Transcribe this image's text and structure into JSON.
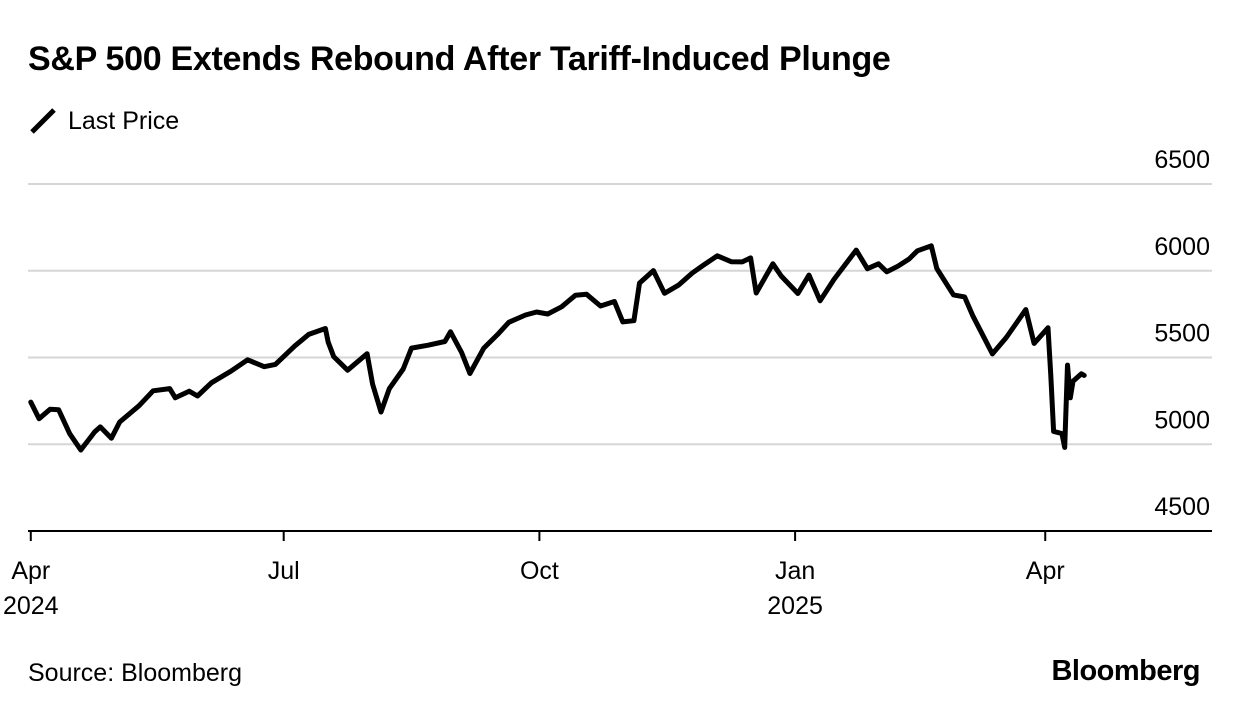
{
  "header": {
    "title": "S&P 500 Extends Rebound After Tariff-Induced Plunge",
    "legend_label": "Last Price"
  },
  "footer": {
    "source": "Source: Bloomberg",
    "brand": "Bloomberg"
  },
  "colors": {
    "line": "#000000",
    "grid": "#d6d6d6",
    "axis": "#000000",
    "background": "#ffffff"
  },
  "chart_data": {
    "type": "line",
    "title": "S&P 500 Extends Rebound After Tariff-Induced Plunge",
    "xlabel": "",
    "ylabel": "",
    "ylim": [
      4500,
      6500
    ],
    "y_ticks": [
      4500,
      5000,
      5500,
      6000,
      6500
    ],
    "x_range": [
      "2024-03-31",
      "2025-05-31"
    ],
    "x_ticks": [
      {
        "date": "2024-04-01",
        "label": "Apr",
        "year": "2024"
      },
      {
        "date": "2024-07-01",
        "label": "Jul",
        "year": ""
      },
      {
        "date": "2024-10-01",
        "label": "Oct",
        "year": ""
      },
      {
        "date": "2025-01-01",
        "label": "Jan",
        "year": "2025"
      },
      {
        "date": "2025-04-01",
        "label": "Apr",
        "year": ""
      }
    ],
    "grid": true,
    "legend_position": "top-left",
    "series": [
      {
        "name": "Last Price",
        "points": [
          [
            "2024-04-01",
            5243
          ],
          [
            "2024-04-04",
            5147
          ],
          [
            "2024-04-08",
            5202
          ],
          [
            "2024-04-11",
            5199
          ],
          [
            "2024-04-15",
            5061
          ],
          [
            "2024-04-19",
            4967
          ],
          [
            "2024-04-24",
            5071
          ],
          [
            "2024-04-26",
            5100
          ],
          [
            "2024-04-30",
            5035
          ],
          [
            "2024-05-03",
            5128
          ],
          [
            "2024-05-10",
            5223
          ],
          [
            "2024-05-15",
            5308
          ],
          [
            "2024-05-21",
            5321
          ],
          [
            "2024-05-23",
            5268
          ],
          [
            "2024-05-28",
            5306
          ],
          [
            "2024-05-31",
            5278
          ],
          [
            "2024-06-05",
            5354
          ],
          [
            "2024-06-12",
            5421
          ],
          [
            "2024-06-18",
            5487
          ],
          [
            "2024-06-24",
            5447
          ],
          [
            "2024-06-28",
            5460
          ],
          [
            "2024-07-05",
            5567
          ],
          [
            "2024-07-10",
            5633
          ],
          [
            "2024-07-16",
            5667
          ],
          [
            "2024-07-17",
            5588
          ],
          [
            "2024-07-19",
            5505
          ],
          [
            "2024-07-24",
            5427
          ],
          [
            "2024-07-31",
            5522
          ],
          [
            "2024-08-02",
            5346
          ],
          [
            "2024-08-05",
            5186
          ],
          [
            "2024-08-08",
            5320
          ],
          [
            "2024-08-13",
            5434
          ],
          [
            "2024-08-16",
            5554
          ],
          [
            "2024-08-22",
            5571
          ],
          [
            "2024-08-28",
            5592
          ],
          [
            "2024-08-30",
            5648
          ],
          [
            "2024-09-03",
            5529
          ],
          [
            "2024-09-06",
            5408
          ],
          [
            "2024-09-11",
            5554
          ],
          [
            "2024-09-16",
            5633
          ],
          [
            "2024-09-20",
            5703
          ],
          [
            "2024-09-26",
            5745
          ],
          [
            "2024-09-30",
            5762
          ],
          [
            "2024-10-04",
            5751
          ],
          [
            "2024-10-09",
            5792
          ],
          [
            "2024-10-14",
            5859
          ],
          [
            "2024-10-18",
            5864
          ],
          [
            "2024-10-23",
            5797
          ],
          [
            "2024-10-28",
            5823
          ],
          [
            "2024-10-31",
            5705
          ],
          [
            "2024-11-04",
            5712
          ],
          [
            "2024-11-06",
            5929
          ],
          [
            "2024-11-11",
            6001
          ],
          [
            "2024-11-15",
            5870
          ],
          [
            "2024-11-20",
            5917
          ],
          [
            "2024-11-25",
            5987
          ],
          [
            "2024-11-29",
            6032
          ],
          [
            "2024-12-04",
            6086
          ],
          [
            "2024-12-09",
            6052
          ],
          [
            "2024-12-13",
            6051
          ],
          [
            "2024-12-16",
            6074
          ],
          [
            "2024-12-18",
            5872
          ],
          [
            "2024-12-24",
            6040
          ],
          [
            "2024-12-27",
            5970
          ],
          [
            "2025-01-02",
            5869
          ],
          [
            "2025-01-06",
            5975
          ],
          [
            "2025-01-10",
            5827
          ],
          [
            "2025-01-15",
            5950
          ],
          [
            "2025-01-23",
            6119
          ],
          [
            "2025-01-27",
            6012
          ],
          [
            "2025-01-31",
            6040
          ],
          [
            "2025-02-03",
            5994
          ],
          [
            "2025-02-07",
            6026
          ],
          [
            "2025-02-11",
            6068
          ],
          [
            "2025-02-14",
            6115
          ],
          [
            "2025-02-19",
            6144
          ],
          [
            "2025-02-21",
            6013
          ],
          [
            "2025-02-27",
            5861
          ],
          [
            "2025-03-03",
            5849
          ],
          [
            "2025-03-06",
            5738
          ],
          [
            "2025-03-10",
            5614
          ],
          [
            "2025-03-13",
            5521
          ],
          [
            "2025-03-18",
            5615
          ],
          [
            "2025-03-25",
            5776
          ],
          [
            "2025-03-28",
            5581
          ],
          [
            "2025-04-02",
            5671
          ],
          [
            "2025-04-03",
            5396
          ],
          [
            "2025-04-04",
            5074
          ],
          [
            "2025-04-07",
            5062
          ],
          [
            "2025-04-08",
            4982
          ],
          [
            "2025-04-09",
            5456
          ],
          [
            "2025-04-10",
            5268
          ],
          [
            "2025-04-11",
            5363
          ],
          [
            "2025-04-14",
            5406
          ],
          [
            "2025-04-15",
            5397
          ]
        ]
      }
    ]
  }
}
